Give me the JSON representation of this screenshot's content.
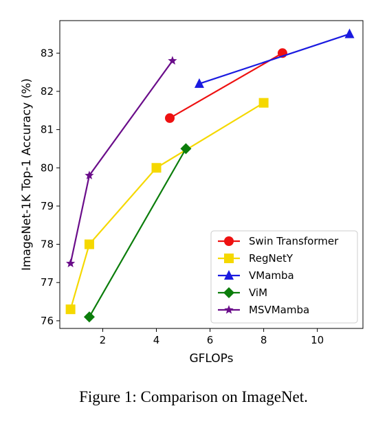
{
  "chart_data": {
    "type": "line",
    "xlabel": "GFLOPs",
    "ylabel": "ImageNet-1K Top-1 Accuracy (%)",
    "xlim": [
      0.4,
      11.7
    ],
    "ylim": [
      75.8,
      83.85
    ],
    "xticks": [
      2,
      4,
      6,
      8,
      10
    ],
    "yticks": [
      76,
      77,
      78,
      79,
      80,
      81,
      82,
      83
    ],
    "grid": false,
    "legend_position": "lower-right",
    "series": [
      {
        "name": "Swin Transformer",
        "marker": "circle",
        "color": "#ee1111",
        "x": [
          4.5,
          8.7
        ],
        "y": [
          81.3,
          83.0
        ]
      },
      {
        "name": "RegNetY",
        "marker": "square",
        "color": "#f5d800",
        "x": [
          0.8,
          1.5,
          4.0,
          8.0
        ],
        "y": [
          76.3,
          78.0,
          80.0,
          81.7
        ]
      },
      {
        "name": "VMamba",
        "marker": "triangle",
        "color": "#1a1ae0",
        "x": [
          5.6,
          11.2
        ],
        "y": [
          82.2,
          83.5
        ]
      },
      {
        "name": "ViM",
        "marker": "diamond",
        "color": "#0b7d0b",
        "x": [
          1.5,
          5.1
        ],
        "y": [
          76.1,
          80.5
        ]
      },
      {
        "name": "MSVMamba",
        "marker": "star",
        "color": "#6a0d8a",
        "x": [
          0.8,
          1.5,
          4.6
        ],
        "y": [
          77.5,
          79.8,
          82.8
        ]
      }
    ]
  },
  "caption": "Figure 1: Comparison on ImageNet."
}
